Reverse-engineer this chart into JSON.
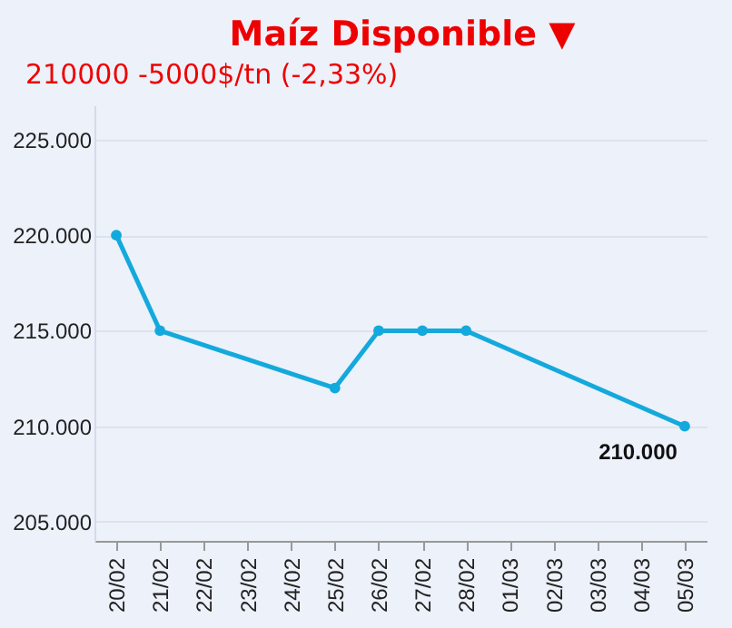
{
  "chart_data": {
    "type": "line",
    "title": "Maíz Disponible ▼",
    "subtitle": "210000 -5000$/tn (-2,33%)",
    "categories": [
      "20/02",
      "21/02",
      "22/02",
      "23/02",
      "24/02",
      "25/02",
      "26/02",
      "27/02",
      "28/02",
      "01/03",
      "02/03",
      "03/03",
      "04/03",
      "05/03"
    ],
    "series": [
      {
        "color": "#14a9dc",
        "values": [
          220000,
          215000,
          null,
          null,
          null,
          212000,
          215000,
          215000,
          215000,
          null,
          null,
          null,
          null,
          210000
        ]
      }
    ],
    "annotations": [
      {
        "text": "210.000",
        "x": "05/03",
        "y": 210000
      }
    ],
    "ylim": [
      204000,
      226800
    ],
    "yticks": [
      {
        "value": 205000,
        "label": "205.000"
      },
      {
        "value": 210000,
        "label": "210.000"
      },
      {
        "value": 215000,
        "label": "215.000"
      },
      {
        "value": 220000,
        "label": "220.000"
      },
      {
        "value": 225000,
        "label": "225.000"
      }
    ],
    "grid": "y",
    "marker": "circle",
    "line_style": "solid"
  }
}
